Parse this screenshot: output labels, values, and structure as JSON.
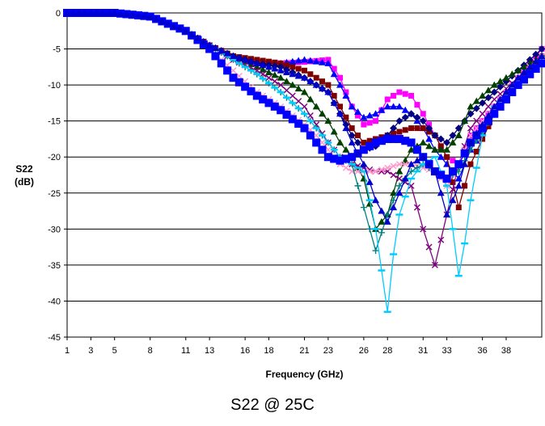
{
  "chart_data": {
    "type": "line",
    "xlabel": "Frequency (GHz)",
    "ylabel_line1": "S22",
    "ylabel_line2": "(dB)",
    "xlim": [
      1,
      41
    ],
    "ylim": [
      -45,
      0
    ],
    "ytick_step": 5,
    "xticks": [
      1,
      3,
      5,
      8,
      11,
      13,
      16,
      18,
      21,
      23,
      26,
      28,
      31,
      33,
      36,
      38
    ],
    "grid": "horizontal",
    "legend": "none",
    "series": [
      {
        "color": "#ff00ff",
        "marker": "square",
        "points": [
          [
            1,
            0
          ],
          [
            5,
            0
          ],
          [
            8,
            -0.5
          ],
          [
            11,
            -2.5
          ],
          [
            13,
            -4.5
          ],
          [
            15,
            -6
          ],
          [
            17,
            -6.7
          ],
          [
            19,
            -7
          ],
          [
            21,
            -6.8
          ],
          [
            23,
            -6.5
          ],
          [
            24,
            -9
          ],
          [
            25,
            -13
          ],
          [
            26,
            -15.5
          ],
          [
            27,
            -15
          ],
          [
            28,
            -12
          ],
          [
            29,
            -11
          ],
          [
            30,
            -11.5
          ],
          [
            31,
            -14
          ],
          [
            32,
            -17
          ],
          [
            33,
            -20
          ],
          [
            34,
            -21
          ],
          [
            35,
            -17
          ],
          [
            37,
            -13
          ],
          [
            39,
            -9
          ],
          [
            41,
            -5
          ]
        ]
      },
      {
        "color": "#0000ff",
        "marker": "triangle",
        "points": [
          [
            1,
            0
          ],
          [
            5,
            0
          ],
          [
            8,
            -0.5
          ],
          [
            11,
            -2.5
          ],
          [
            13,
            -4.5
          ],
          [
            15,
            -6
          ],
          [
            17,
            -7
          ],
          [
            19,
            -7
          ],
          [
            21,
            -6.5
          ],
          [
            23,
            -7
          ],
          [
            24,
            -10
          ],
          [
            25,
            -13
          ],
          [
            26,
            -14.5
          ],
          [
            27,
            -14
          ],
          [
            28,
            -13
          ],
          [
            29,
            -13
          ],
          [
            30,
            -14
          ],
          [
            31,
            -16
          ],
          [
            32,
            -19
          ],
          [
            33,
            -21
          ],
          [
            34,
            -23
          ],
          [
            35,
            -19
          ],
          [
            37,
            -14
          ],
          [
            39,
            -10
          ],
          [
            41,
            -6
          ]
        ]
      },
      {
        "color": "#800000",
        "marker": "square",
        "points": [
          [
            1,
            0
          ],
          [
            5,
            0
          ],
          [
            8,
            -0.5
          ],
          [
            11,
            -2.5
          ],
          [
            13,
            -4.5
          ],
          [
            15,
            -6
          ],
          [
            17,
            -6.5
          ],
          [
            19,
            -7
          ],
          [
            21,
            -8
          ],
          [
            23,
            -10
          ],
          [
            24,
            -13
          ],
          [
            25,
            -16
          ],
          [
            26,
            -18
          ],
          [
            27,
            -17.5
          ],
          [
            28,
            -17
          ],
          [
            29,
            -16.5
          ],
          [
            30,
            -16
          ],
          [
            31,
            -16
          ],
          [
            32,
            -17
          ],
          [
            33,
            -20
          ],
          [
            34,
            -27
          ],
          [
            35,
            -21
          ],
          [
            37,
            -14
          ],
          [
            39,
            -10
          ],
          [
            41,
            -6
          ]
        ]
      },
      {
        "color": "#000080",
        "marker": "diamond",
        "points": [
          [
            1,
            0
          ],
          [
            5,
            0
          ],
          [
            8,
            -0.5
          ],
          [
            11,
            -2.5
          ],
          [
            13,
            -4.5
          ],
          [
            15,
            -6
          ],
          [
            17,
            -7
          ],
          [
            19,
            -7.5
          ],
          [
            21,
            -9
          ],
          [
            23,
            -11
          ],
          [
            24,
            -14
          ],
          [
            25,
            -17
          ],
          [
            26,
            -19
          ],
          [
            27,
            -18.5
          ],
          [
            28,
            -17
          ],
          [
            29,
            -15
          ],
          [
            30,
            -14
          ],
          [
            31,
            -15
          ],
          [
            32,
            -17
          ],
          [
            33,
            -18
          ],
          [
            34,
            -16
          ],
          [
            35,
            -14
          ],
          [
            37,
            -11
          ],
          [
            39,
            -8
          ],
          [
            41,
            -5
          ]
        ]
      },
      {
        "color": "#004000",
        "marker": "triangle",
        "points": [
          [
            1,
            0
          ],
          [
            5,
            0
          ],
          [
            8,
            -0.5
          ],
          [
            11,
            -2.5
          ],
          [
            13,
            -4.5
          ],
          [
            15,
            -6
          ],
          [
            17,
            -7.5
          ],
          [
            19,
            -9
          ],
          [
            21,
            -11
          ],
          [
            22,
            -13
          ],
          [
            23,
            -15
          ],
          [
            24,
            -18
          ],
          [
            25,
            -20
          ],
          [
            26,
            -23
          ],
          [
            27,
            -30
          ],
          [
            28,
            -28
          ],
          [
            29,
            -22
          ],
          [
            30,
            -19
          ],
          [
            31,
            -18
          ],
          [
            32,
            -19
          ],
          [
            33,
            -19
          ],
          [
            34,
            -17
          ],
          [
            35,
            -13
          ],
          [
            37,
            -10
          ],
          [
            39,
            -8
          ],
          [
            41,
            -6
          ]
        ]
      },
      {
        "color": "#800080",
        "marker": "x",
        "points": [
          [
            1,
            0
          ],
          [
            5,
            0
          ],
          [
            8,
            -0.5
          ],
          [
            11,
            -2.5
          ],
          [
            13,
            -4.5
          ],
          [
            15,
            -6.5
          ],
          [
            17,
            -8
          ],
          [
            19,
            -10
          ],
          [
            21,
            -13
          ],
          [
            22,
            -15.5
          ],
          [
            23,
            -18
          ],
          [
            24,
            -20
          ],
          [
            25,
            -21
          ],
          [
            26,
            -21.5
          ],
          [
            27,
            -22
          ],
          [
            28,
            -22
          ],
          [
            29,
            -23
          ],
          [
            30,
            -24
          ],
          [
            31,
            -30
          ],
          [
            32,
            -35
          ],
          [
            33,
            -28
          ],
          [
            34,
            -21
          ],
          [
            35,
            -16
          ],
          [
            37,
            -12
          ],
          [
            39,
            -9
          ],
          [
            41,
            -6
          ]
        ]
      },
      {
        "color": "#ff99cc",
        "marker": "x",
        "points": [
          [
            1,
            0
          ],
          [
            5,
            0
          ],
          [
            8,
            -0.5
          ],
          [
            11,
            -2.5
          ],
          [
            13,
            -5
          ],
          [
            15,
            -8
          ],
          [
            17,
            -11
          ],
          [
            19,
            -13
          ],
          [
            21,
            -15.5
          ],
          [
            22,
            -17
          ],
          [
            23,
            -19
          ],
          [
            24,
            -21
          ],
          [
            25,
            -22
          ],
          [
            26,
            -22
          ],
          [
            27,
            -22
          ],
          [
            28,
            -21.5
          ],
          [
            29,
            -21
          ],
          [
            30,
            -21
          ],
          [
            31,
            -21.5
          ],
          [
            32,
            -22
          ],
          [
            33,
            -24
          ],
          [
            34,
            -21
          ],
          [
            35,
            -17
          ],
          [
            37,
            -13
          ],
          [
            39,
            -9
          ],
          [
            41,
            -6
          ]
        ]
      },
      {
        "color": "#008080",
        "marker": "plus",
        "points": [
          [
            1,
            0
          ],
          [
            5,
            0
          ],
          [
            8,
            -0.5
          ],
          [
            11,
            -2.5
          ],
          [
            13,
            -4.5
          ],
          [
            15,
            -6.5
          ],
          [
            17,
            -8.5
          ],
          [
            19,
            -11
          ],
          [
            21,
            -14
          ],
          [
            23,
            -18
          ],
          [
            24,
            -20
          ],
          [
            25,
            -21
          ],
          [
            26,
            -27
          ],
          [
            27,
            -33
          ],
          [
            28,
            -28
          ],
          [
            29,
            -24
          ],
          [
            30,
            -22
          ],
          [
            31,
            -21
          ],
          [
            32,
            -22
          ],
          [
            33,
            -23
          ],
          [
            34,
            -22
          ],
          [
            35,
            -19
          ],
          [
            37,
            -14
          ],
          [
            39,
            -10
          ],
          [
            41,
            -6
          ]
        ]
      },
      {
        "color": "#00ccff",
        "marker": "dash",
        "points": [
          [
            1,
            0
          ],
          [
            5,
            0
          ],
          [
            8,
            -0.5
          ],
          [
            11,
            -2.5
          ],
          [
            13,
            -4.5
          ],
          [
            15,
            -6.5
          ],
          [
            17,
            -8.5
          ],
          [
            19,
            -11
          ],
          [
            21,
            -14
          ],
          [
            23,
            -18
          ],
          [
            24,
            -20
          ],
          [
            25,
            -21
          ],
          [
            26,
            -22
          ],
          [
            27,
            -30
          ],
          [
            28,
            -41.5
          ],
          [
            28.5,
            -33.5
          ],
          [
            29,
            -28
          ],
          [
            30,
            -23
          ],
          [
            31,
            -21
          ],
          [
            32,
            -20
          ],
          [
            33,
            -24
          ],
          [
            33.5,
            -30
          ],
          [
            34,
            -36.5
          ],
          [
            34.5,
            -32
          ],
          [
            35,
            -26
          ],
          [
            36,
            -17
          ],
          [
            37,
            -13
          ],
          [
            39,
            -10
          ],
          [
            41,
            -7
          ]
        ]
      },
      {
        "color": "#0000ff",
        "marker": "square-large",
        "points": [
          [
            1,
            0
          ],
          [
            5,
            0
          ],
          [
            8,
            -0.5
          ],
          [
            11,
            -2.5
          ],
          [
            13,
            -5
          ],
          [
            15,
            -9
          ],
          [
            17,
            -11.5
          ],
          [
            19,
            -13.5
          ],
          [
            21,
            -16
          ],
          [
            22,
            -18
          ],
          [
            23,
            -20
          ],
          [
            24,
            -20.5
          ],
          [
            25,
            -20
          ],
          [
            26,
            -19
          ],
          [
            27,
            -18
          ],
          [
            28,
            -17.5
          ],
          [
            29,
            -17.5
          ],
          [
            30,
            -18
          ],
          [
            31,
            -20
          ],
          [
            32,
            -22
          ],
          [
            33,
            -23
          ],
          [
            34,
            -21
          ],
          [
            35,
            -18
          ],
          [
            37,
            -14
          ],
          [
            39,
            -10
          ],
          [
            41,
            -7
          ]
        ]
      },
      {
        "color": "#0000cc",
        "marker": "triangle",
        "points": [
          [
            1,
            0
          ],
          [
            5,
            0
          ],
          [
            8,
            -0.5
          ],
          [
            11,
            -2.5
          ],
          [
            13,
            -4.5
          ],
          [
            15,
            -6
          ],
          [
            17,
            -7
          ],
          [
            19,
            -8
          ],
          [
            21,
            -9
          ],
          [
            23,
            -11
          ],
          [
            24,
            -14
          ],
          [
            25,
            -18
          ],
          [
            26,
            -21
          ],
          [
            27,
            -26
          ],
          [
            28,
            -29
          ],
          [
            29,
            -25
          ],
          [
            30,
            -21
          ],
          [
            31,
            -20
          ],
          [
            32,
            -22
          ],
          [
            33,
            -28
          ],
          [
            34,
            -24
          ],
          [
            35,
            -18
          ],
          [
            37,
            -13
          ],
          [
            39,
            -9
          ],
          [
            41,
            -6
          ]
        ]
      }
    ]
  },
  "caption": "S22 @ 25C"
}
